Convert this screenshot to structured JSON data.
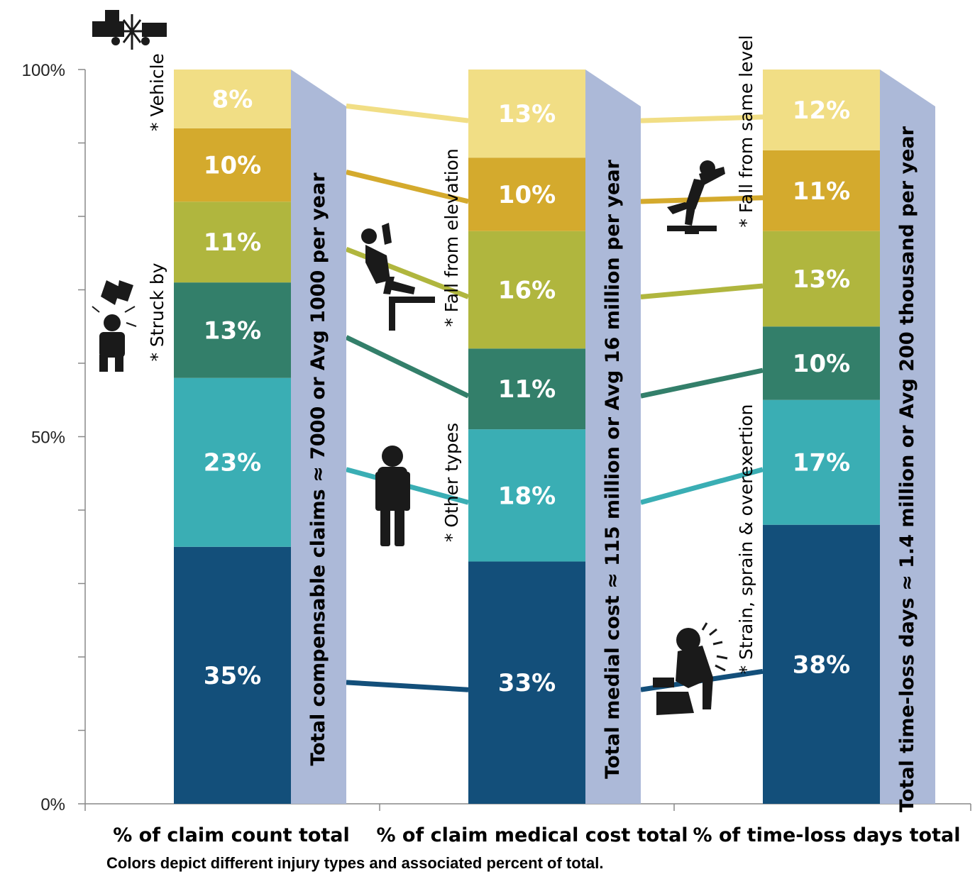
{
  "chart_data": {
    "type": "bar",
    "stacked": true,
    "categories": [
      "% of claim count total",
      "% of claim medical cost total",
      "% of time-loss days total"
    ],
    "y_ticks": [
      "0%",
      "50%",
      "100%"
    ],
    "ylim": [
      0,
      100
    ],
    "series": [
      {
        "name": "Strain, sprain & overexertion",
        "label": "* Strain, sprain & overexertion",
        "values": [
          35,
          33,
          38
        ],
        "value_labels": [
          "35%",
          "33%",
          "38%"
        ]
      },
      {
        "name": "Other types",
        "label": "* Other types",
        "values": [
          23,
          18,
          17
        ],
        "value_labels": [
          "23%",
          "18%",
          "17%"
        ]
      },
      {
        "name": "",
        "label": "",
        "values": [
          13,
          11,
          10
        ],
        "value_labels": [
          "13%",
          "11%",
          "10%"
        ]
      },
      {
        "name": "Struck by",
        "label": "* Struck by",
        "values": [
          11,
          16,
          13
        ],
        "value_labels": [
          "11%",
          "16%",
          "13%"
        ]
      },
      {
        "name": "Fall from elevation",
        "label": "* Fall from elevation",
        "values": [
          10,
          10,
          11
        ],
        "value_labels": [
          "10%",
          "10%",
          "11%"
        ]
      },
      {
        "name": "Vehicle",
        "label": "* Vehicle",
        "values": [
          8,
          13,
          12
        ],
        "value_labels": [
          "8%",
          "13%",
          "12%"
        ]
      }
    ],
    "series_colors": [
      "#134f7a",
      "#3aaeb4",
      "#337f6a",
      "#b0b63e",
      "#d4aa2d",
      "#f1de85"
    ],
    "side_labels": [
      "Total compensable claims ≈ 7000 or Avg 1000 per year",
      "Total medial cost ≈ 115 million or Avg 16 million per year",
      "Total time-loss days ≈ 1.4 million or Avg  200 thousand per year"
    ],
    "extra_label": "* Fall from same level",
    "side_color": "#acb9d8"
  },
  "caption": "Colors depict different injury types and associated percent of total.",
  "icons": [
    "vehicle-crash-icon",
    "struck-by-icon",
    "fall-from-elevation-icon",
    "other-types-person-icon",
    "fall-same-level-icon",
    "strain-overexertion-icon"
  ]
}
